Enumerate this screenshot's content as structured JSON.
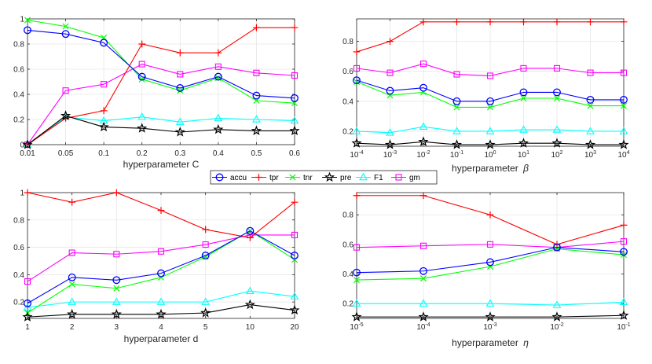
{
  "colors": {
    "accu": "#0000ff",
    "tpr": "#ff0000",
    "tnr": "#00ff00",
    "pre": "#000000",
    "F1": "#00ffff",
    "gm": "#ff00ff",
    "axis": "#262626",
    "grid": "#e6e6e6"
  },
  "legend": [
    "accu",
    "tpr",
    "tnr",
    "pre",
    "F1",
    "gm"
  ],
  "chart_data": [
    {
      "type": "line",
      "title": "",
      "xlabel": "hyperparameter C",
      "xlabel_symbol": "",
      "x_ticks": [
        "0.01",
        "0.05",
        "0.1",
        "0.2",
        "0.3",
        "0.4",
        "0.5",
        "0.6"
      ],
      "y_ticks": [
        "0",
        "0.2",
        "0.4",
        "0.6",
        "0.8",
        "1"
      ],
      "ylim": [
        0,
        1
      ],
      "grid": true,
      "series": [
        {
          "name": "accu",
          "values": [
            0.91,
            0.88,
            0.81,
            0.54,
            0.45,
            0.54,
            0.39,
            0.37
          ]
        },
        {
          "name": "tpr",
          "values": [
            0.0,
            0.21,
            0.27,
            0.8,
            0.73,
            0.73,
            0.93,
            0.93
          ]
        },
        {
          "name": "tnr",
          "values": [
            0.99,
            0.94,
            0.85,
            0.52,
            0.43,
            0.53,
            0.35,
            0.33
          ]
        },
        {
          "name": "pre",
          "values": [
            0.0,
            0.23,
            0.14,
            0.13,
            0.1,
            0.12,
            0.11,
            0.11
          ]
        },
        {
          "name": "F1",
          "values": [
            0.0,
            0.22,
            0.19,
            0.22,
            0.18,
            0.21,
            0.2,
            0.19
          ]
        },
        {
          "name": "gm",
          "values": [
            0.0,
            0.43,
            0.48,
            0.64,
            0.56,
            0.62,
            0.57,
            0.55
          ]
        }
      ]
    },
    {
      "type": "line",
      "title": "",
      "xlabel": "hyperparameter ",
      "xlabel_symbol": "β",
      "x_ticks_base": [
        "10",
        "10",
        "10",
        "10",
        "10",
        "10",
        "10",
        "10",
        "10"
      ],
      "x_ticks_exp": [
        "-4",
        "-3",
        "-2",
        "-1",
        "0",
        "1",
        "2",
        "3",
        "4"
      ],
      "y_ticks": [
        "0.2",
        "0.4",
        "0.6",
        "0.8"
      ],
      "ylim": [
        0.1,
        0.95
      ],
      "grid": true,
      "series": [
        {
          "name": "accu",
          "values": [
            0.54,
            0.47,
            0.49,
            0.4,
            0.4,
            0.46,
            0.46,
            0.41,
            0.41
          ]
        },
        {
          "name": "tpr",
          "values": [
            0.73,
            0.8,
            0.93,
            0.93,
            0.93,
            0.93,
            0.93,
            0.93,
            0.93
          ]
        },
        {
          "name": "tnr",
          "values": [
            0.53,
            0.44,
            0.46,
            0.36,
            0.36,
            0.42,
            0.42,
            0.37,
            0.37
          ]
        },
        {
          "name": "pre",
          "values": [
            0.12,
            0.11,
            0.13,
            0.11,
            0.11,
            0.12,
            0.12,
            0.11,
            0.11
          ]
        },
        {
          "name": "F1",
          "values": [
            0.2,
            0.19,
            0.23,
            0.2,
            0.2,
            0.21,
            0.21,
            0.2,
            0.2
          ]
        },
        {
          "name": "gm",
          "values": [
            0.62,
            0.59,
            0.65,
            0.58,
            0.57,
            0.62,
            0.62,
            0.59,
            0.59
          ]
        }
      ]
    },
    {
      "type": "line",
      "title": "",
      "xlabel": "hyperparameter d",
      "xlabel_symbol": "",
      "x_ticks": [
        "1",
        "2",
        "3",
        "4",
        "5",
        "10",
        "20"
      ],
      "y_ticks": [
        "0.2",
        "0.4",
        "0.6",
        "0.8",
        "1"
      ],
      "ylim": [
        0.08,
        1
      ],
      "grid": true,
      "series": [
        {
          "name": "accu",
          "values": [
            0.19,
            0.38,
            0.36,
            0.41,
            0.54,
            0.72,
            0.54
          ]
        },
        {
          "name": "tpr",
          "values": [
            1.0,
            0.93,
            1.0,
            0.87,
            0.73,
            0.67,
            0.93
          ]
        },
        {
          "name": "tnr",
          "values": [
            0.12,
            0.33,
            0.3,
            0.38,
            0.53,
            0.72,
            0.51
          ]
        },
        {
          "name": "pre",
          "values": [
            0.09,
            0.11,
            0.11,
            0.11,
            0.12,
            0.18,
            0.14
          ]
        },
        {
          "name": "F1",
          "values": [
            0.16,
            0.2,
            0.2,
            0.2,
            0.2,
            0.28,
            0.24
          ]
        },
        {
          "name": "gm",
          "values": [
            0.35,
            0.56,
            0.55,
            0.57,
            0.62,
            0.69,
            0.69
          ]
        }
      ]
    },
    {
      "type": "line",
      "title": "",
      "xlabel": "hyperparameter ",
      "xlabel_symbol": "η",
      "x_ticks_base": [
        "10",
        "10",
        "10",
        "10",
        "10"
      ],
      "x_ticks_exp": [
        "-5",
        "-4",
        "-3",
        "-2",
        "-1"
      ],
      "y_ticks": [
        "0.2",
        "0.4",
        "0.6",
        "0.8"
      ],
      "ylim": [
        0.1,
        0.95
      ],
      "grid": true,
      "series": [
        {
          "name": "accu",
          "values": [
            0.41,
            0.42,
            0.48,
            0.58,
            0.55
          ]
        },
        {
          "name": "tpr",
          "values": [
            0.93,
            0.93,
            0.8,
            0.6,
            0.73
          ]
        },
        {
          "name": "tnr",
          "values": [
            0.36,
            0.37,
            0.45,
            0.57,
            0.53
          ]
        },
        {
          "name": "pre",
          "values": [
            0.11,
            0.11,
            0.11,
            0.11,
            0.12
          ]
        },
        {
          "name": "F1",
          "values": [
            0.2,
            0.2,
            0.2,
            0.19,
            0.21
          ]
        },
        {
          "name": "gm",
          "values": [
            0.58,
            0.59,
            0.6,
            0.58,
            0.62
          ]
        }
      ]
    }
  ]
}
